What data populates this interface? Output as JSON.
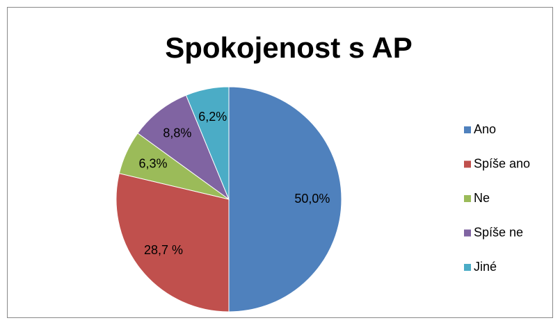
{
  "chart_data": {
    "type": "pie",
    "title": "Spokojenost s AP",
    "categories": [
      "Ano",
      "Spíše ano",
      "Ne",
      "Spíše ne",
      "Jiné"
    ],
    "values": [
      50.0,
      28.7,
      6.3,
      8.8,
      6.2
    ],
    "value_labels": [
      "50,0%",
      "28,7 %",
      "6,3%",
      "8,8%",
      "6,2%"
    ],
    "colors": [
      "#4f81bd",
      "#c0504d",
      "#9bbb59",
      "#8064a2",
      "#4bacc6"
    ],
    "legend": "right"
  }
}
